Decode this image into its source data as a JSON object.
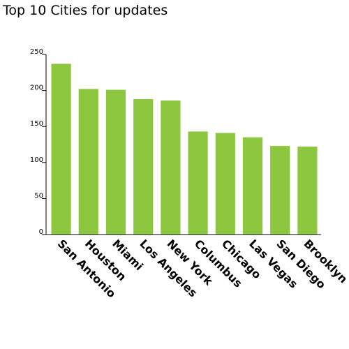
{
  "title": "Top 10 Cities for updates",
  "bar_color": "#8dc63f",
  "chart_data": {
    "type": "bar",
    "title": "Top 10 Cities for updates",
    "categories": [
      "San Antonio",
      "Houston",
      "Miami",
      "Los Angeles",
      "New York",
      "Columbus",
      "Chicago",
      "Las Vegas",
      "San Diego",
      "Brooklyn"
    ],
    "values": [
      237,
      202,
      201,
      188,
      186,
      143,
      141,
      135,
      123,
      122
    ],
    "yticks": [
      0,
      50,
      100,
      150,
      200,
      250
    ],
    "ylim": [
      0,
      250
    ],
    "xlabel": "",
    "ylabel": "",
    "grid": false,
    "legend": "none"
  }
}
